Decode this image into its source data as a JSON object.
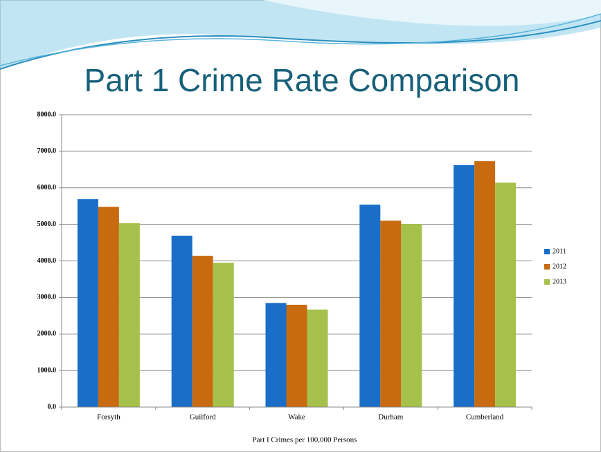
{
  "chart_data": {
    "type": "bar",
    "title": "Part 1 Crime Rate Comparison",
    "x_label": "Part I Crimes per 100,000 Persons",
    "categories": [
      "Forsyth",
      "Guilford",
      "Wake",
      "Durham",
      "Cumberland"
    ],
    "series": [
      {
        "name": "2011",
        "color": "#1a6ec8",
        "values": [
          5690,
          4690,
          2850,
          5540,
          6620
        ]
      },
      {
        "name": "2012",
        "color": "#c86a10",
        "values": [
          5480,
          4140,
          2800,
          5100,
          6730
        ]
      },
      {
        "name": "2013",
        "color": "#a6c14b",
        "values": [
          5030,
          3950,
          2670,
          5010,
          6140
        ]
      }
    ],
    "ylim": [
      0,
      8000
    ],
    "yticks": [
      {
        "value": 0,
        "label": "0.0"
      },
      {
        "value": 1000,
        "label": "1000.0"
      },
      {
        "value": 2000,
        "label": "2000.0"
      },
      {
        "value": 3000,
        "label": "3000.0"
      },
      {
        "value": 4000,
        "label": "4000.0"
      },
      {
        "value": 5000,
        "label": "5000.0"
      },
      {
        "value": 6000,
        "label": "6000.0"
      },
      {
        "value": 7000,
        "label": "7000.0"
      },
      {
        "value": 8000,
        "label": "8000.0"
      }
    ],
    "grid": true,
    "legend": "right"
  }
}
